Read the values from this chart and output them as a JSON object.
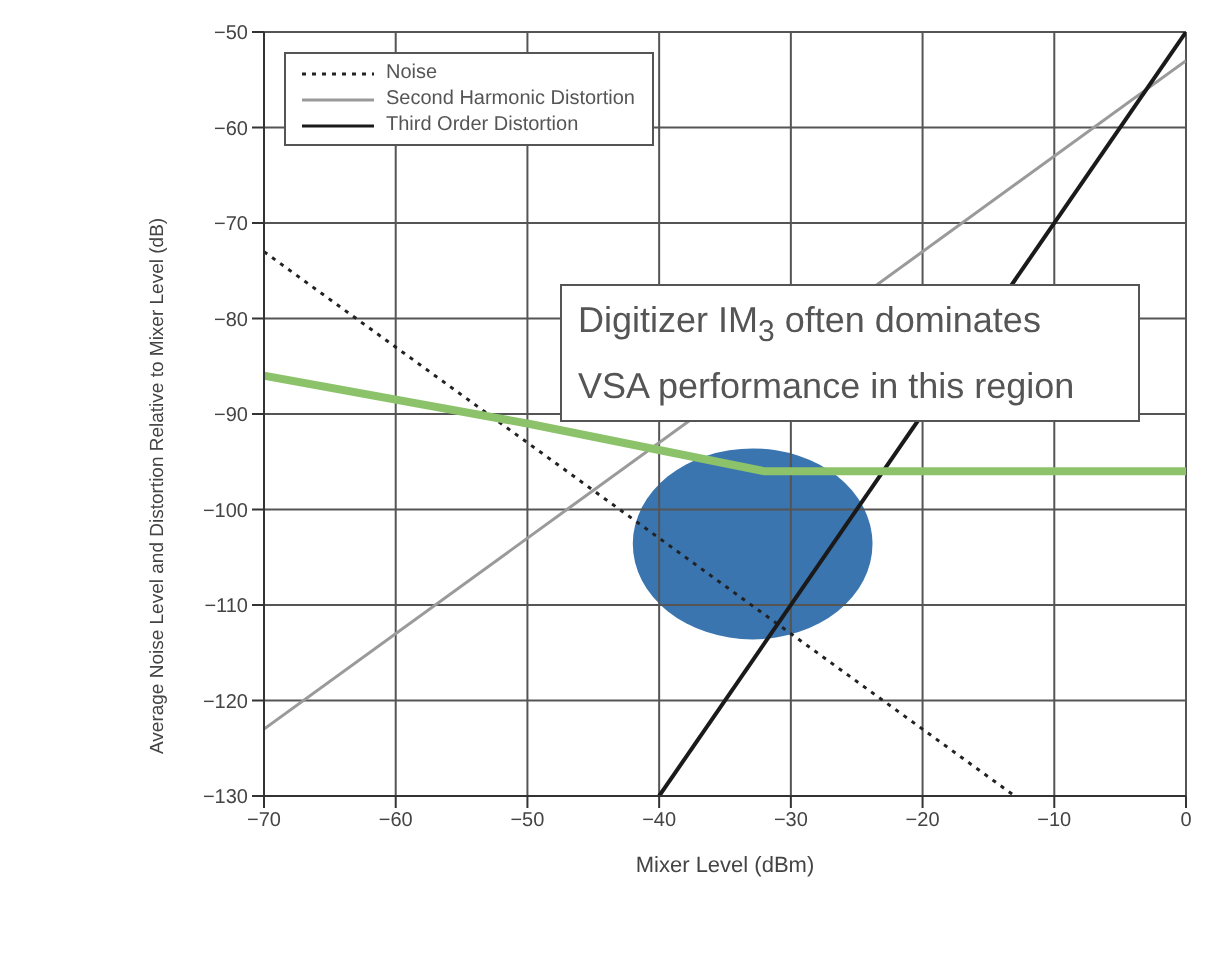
{
  "chart_data": {
    "type": "line",
    "xlabel": "Mixer Level (dBm)",
    "ylabel": "Average Noise Level and Distortion Relative to Mixer Level (dB)",
    "xlim": [
      -70,
      0
    ],
    "xticks": [
      -70,
      -60,
      -50,
      -40,
      -30,
      -20,
      -10,
      0
    ],
    "ylim": [
      -130,
      -50
    ],
    "yticks": [
      -130,
      -120,
      -110,
      -100,
      -90,
      -80,
      -70,
      -60,
      -50
    ],
    "grid": true,
    "legend": "top left",
    "marker": "none",
    "annotations": [
      "Digitizer IM$_{3}$ often dominates VSA performance in this region"
    ],
    "series": [
      {
        "name": "Noise",
        "color": "#222222",
        "line_style": "dotted",
        "x": [
          -70,
          -13
        ],
        "values": [
          -73,
          -130
        ]
      },
      {
        "name": "Second Harmonic Distortion",
        "color": "#9a9a9a",
        "line_style": "solid",
        "x": [
          -70,
          0
        ],
        "values": [
          -123,
          -53
        ]
      },
      {
        "name": "Third Order Distortion",
        "color": "#1a1a1a",
        "line_style": "solid",
        "x": [
          -40,
          0
        ],
        "values": [
          -130,
          -50
        ]
      },
      {
        "color": "#8cc36a",
        "line_style": "solid",
        "x": [
          -70,
          -50,
          -32,
          0
        ],
        "values": [
          -86,
          -91,
          -96,
          -96
        ]
      }
    ]
  }
}
